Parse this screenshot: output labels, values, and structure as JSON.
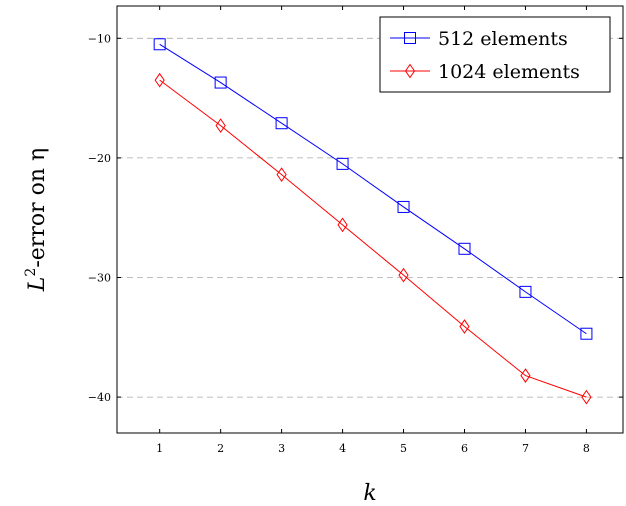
{
  "chart_data": {
    "type": "line",
    "x": [
      1,
      2,
      3,
      4,
      5,
      6,
      7,
      8
    ],
    "x_ticks": [
      1,
      2,
      3,
      4,
      5,
      6,
      7,
      8
    ],
    "y_ticks": [
      -10,
      -20,
      -30,
      -40
    ],
    "xlim": [
      0.3,
      8.6
    ],
    "ylim": [
      -43,
      -7.3
    ],
    "xlabel": "k",
    "ylabel_base": "L",
    "ylabel_sup": "2",
    "ylabel_rest": "-error on η",
    "grid": "horizontal dashed",
    "legend_position": "top-right",
    "series": [
      {
        "name": "512 elements",
        "color": "#0000ff",
        "marker": "square",
        "values": [
          -10.5,
          -13.7,
          -17.1,
          -20.5,
          -24.1,
          -27.6,
          -31.2,
          -34.7
        ]
      },
      {
        "name": "1024 elements",
        "color": "#ff0000",
        "marker": "diamond",
        "values": [
          -13.5,
          -17.3,
          -21.4,
          -25.6,
          -29.8,
          -34.1,
          -38.2,
          -40.0
        ]
      }
    ]
  }
}
